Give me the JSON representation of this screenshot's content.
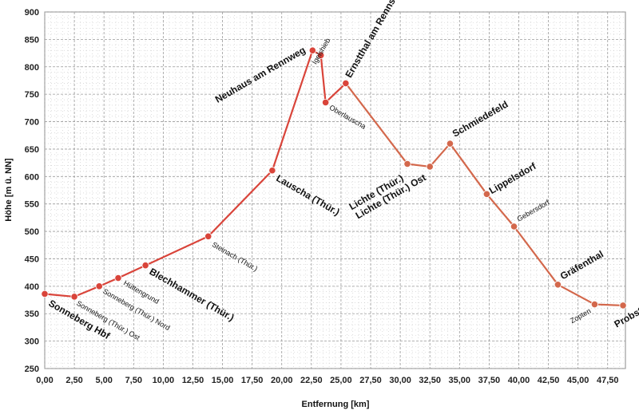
{
  "chart_data": {
    "type": "line",
    "xlabel": "Entfernung [km]",
    "ylabel": "Höhe [m ü. NN]",
    "xlim": [
      0,
      49
    ],
    "ylim": [
      250,
      900
    ],
    "x_ticks": [
      0,
      2.5,
      5,
      7.5,
      10,
      12.5,
      15,
      17.5,
      20,
      22.5,
      25,
      27.5,
      30,
      32.5,
      35,
      37.5,
      40,
      42.5,
      45,
      47.5
    ],
    "x_tick_labels": [
      "0,00",
      "2,50",
      "5,00",
      "7,50",
      "10,00",
      "12,50",
      "15,00",
      "17,50",
      "20,00",
      "22,50",
      "25,00",
      "27,50",
      "30,00",
      "32,50",
      "35,00",
      "37,50",
      "40,00",
      "42,50",
      "45,00",
      "47,50"
    ],
    "y_ticks": [
      250,
      300,
      350,
      400,
      450,
      500,
      550,
      600,
      650,
      700,
      750,
      800,
      850,
      900
    ],
    "y_tick_labels": [
      "250",
      "300",
      "350",
      "400",
      "450",
      "500",
      "550",
      "600",
      "650",
      "700",
      "750",
      "800",
      "850",
      "900"
    ],
    "grid": true,
    "colors": {
      "segment_1": "#d9443a",
      "segment_2": "#d3684c"
    },
    "points": [
      {
        "name": "Sonneberg Hbf",
        "x": 0.0,
        "y": 386,
        "bold": true
      },
      {
        "name": "Sonneberg (Thür.) Ost",
        "x": 2.5,
        "y": 381,
        "bold": false
      },
      {
        "name": "Sonneberg (Thür.) Nord",
        "x": 4.6,
        "y": 400,
        "bold": false
      },
      {
        "name": "Hüttengrund",
        "x": 6.2,
        "y": 415,
        "bold": false
      },
      {
        "name": "Blechhammer (Thür.)",
        "x": 8.5,
        "y": 438,
        "bold": true
      },
      {
        "name": "Steinach (Thür.)",
        "x": 13.8,
        "y": 491,
        "bold": false
      },
      {
        "name": "Lauscha (Thür.)",
        "x": 19.2,
        "y": 611,
        "bold": true
      },
      {
        "name": "Neuhaus am Rennweg",
        "x": 22.6,
        "y": 830,
        "bold": true
      },
      {
        "name": "Igelshieb",
        "x": 23.3,
        "y": 821,
        "bold": false
      },
      {
        "name": "Oberlauscha",
        "x": 23.7,
        "y": 735,
        "bold": false
      },
      {
        "name": "Ernstthal am Rennsteig",
        "x": 25.4,
        "y": 770,
        "bold": true
      },
      {
        "name": "Lichte (Thür.)",
        "x": 30.6,
        "y": 623,
        "bold": true
      },
      {
        "name": "Lichte (Thür.) Ost",
        "x": 32.5,
        "y": 618,
        "bold": true
      },
      {
        "name": "Schmiedefeld",
        "x": 34.2,
        "y": 660,
        "bold": true
      },
      {
        "name": "Lippelsdorf",
        "x": 37.3,
        "y": 568,
        "bold": true
      },
      {
        "name": "Gebersdorf",
        "x": 39.6,
        "y": 509,
        "bold": false
      },
      {
        "name": "Gräfenthal",
        "x": 43.3,
        "y": 403,
        "bold": true
      },
      {
        "name": "Zopten",
        "x": 46.4,
        "y": 367,
        "bold": false
      },
      {
        "name": "Probstzella",
        "x": 48.8,
        "y": 365,
        "bold": true
      }
    ]
  }
}
